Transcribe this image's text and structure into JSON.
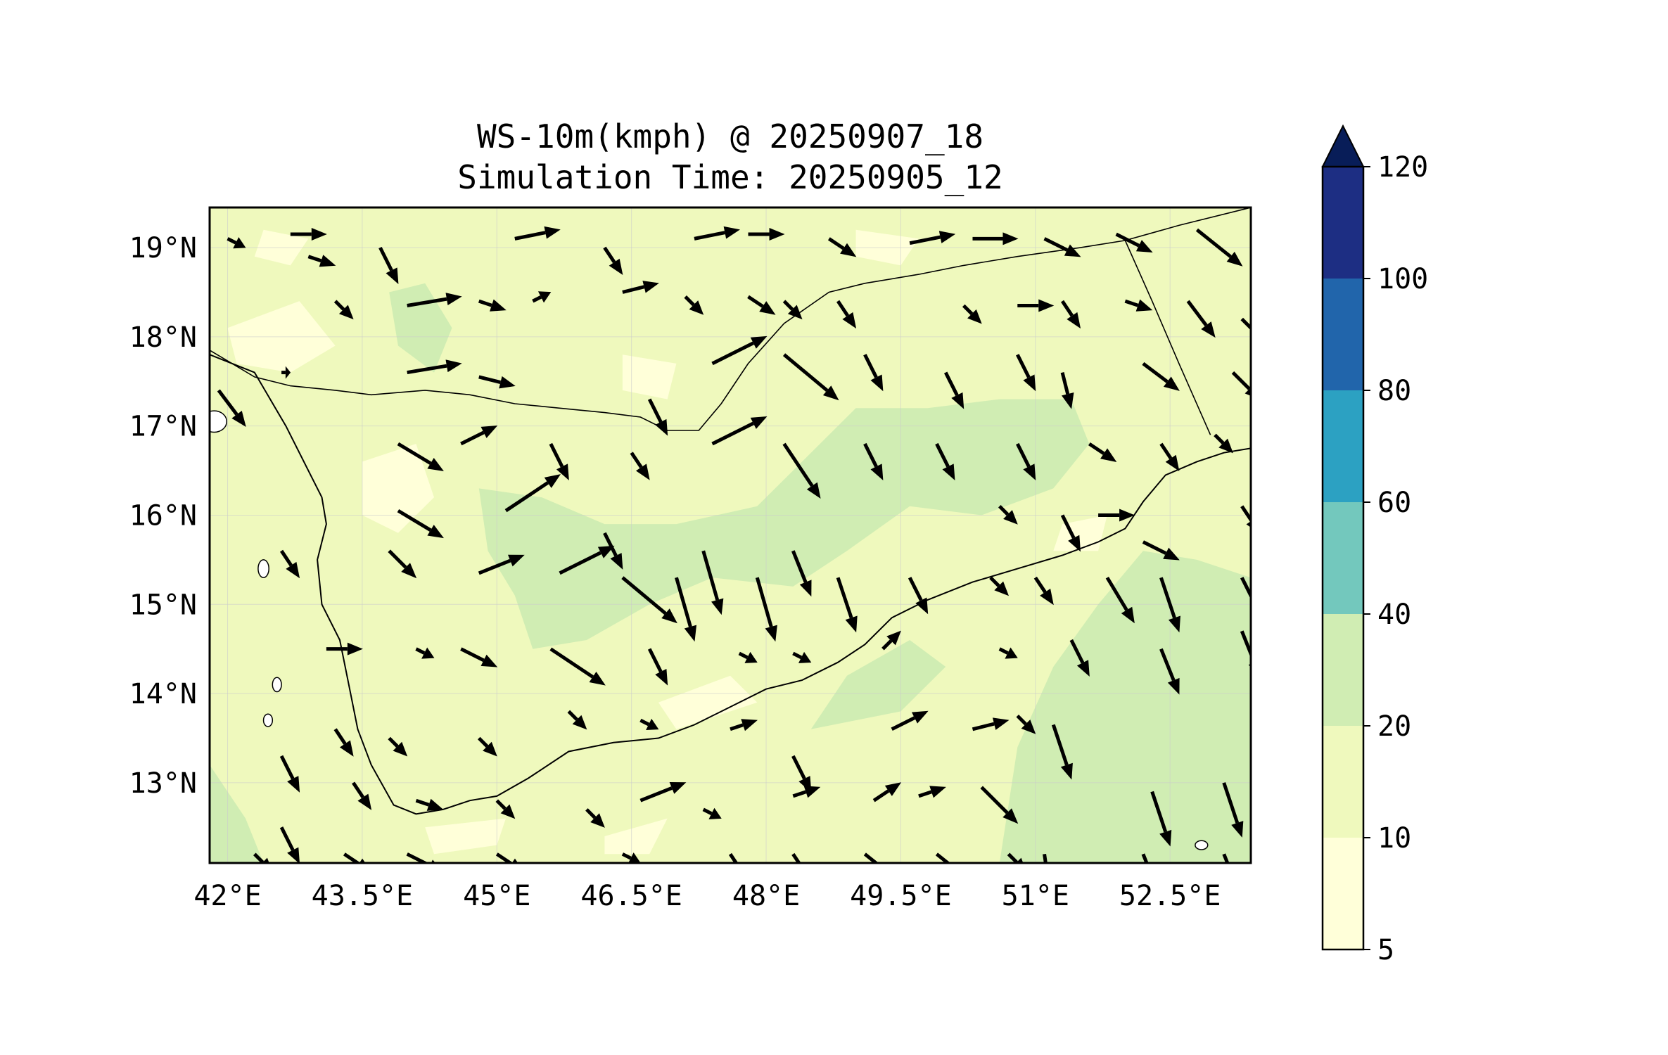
{
  "map": {
    "title_line1": "WS-10m(kmph) @ 20250907_18",
    "title_line2": "Simulation Time: 20250905_12",
    "x_axis": {
      "range": [
        41.8,
        53.4
      ],
      "ticks": [
        {
          "value": 42.0,
          "label": "42°E"
        },
        {
          "value": 43.5,
          "label": "43.5°E"
        },
        {
          "value": 45.0,
          "label": "45°E"
        },
        {
          "value": 46.5,
          "label": "46.5°E"
        },
        {
          "value": 48.0,
          "label": "48°E"
        },
        {
          "value": 49.5,
          "label": "49.5°E"
        },
        {
          "value": 51.0,
          "label": "51°E"
        },
        {
          "value": 52.5,
          "label": "52.5°E"
        }
      ]
    },
    "y_axis": {
      "range": [
        12.1,
        19.45
      ],
      "ticks": [
        {
          "value": 13,
          "label": "13°N"
        },
        {
          "value": 14,
          "label": "14°N"
        },
        {
          "value": 15,
          "label": "15°N"
        },
        {
          "value": 16,
          "label": "16°N"
        },
        {
          "value": 17,
          "label": "17°N"
        },
        {
          "value": 18,
          "label": "18°N"
        },
        {
          "value": 19,
          "label": "19°N"
        }
      ]
    },
    "grid": true,
    "colors": {
      "c5_10": "#ffffd9",
      "c10_20": "#eff9bd",
      "c20_40": "#d0edb3",
      "c40_60": "#73c8bd",
      "c60_80": "#2ca1c2",
      "c80_100": "#2165ab",
      "c100_120": "#1d2e83",
      "extend_max": "#081d58"
    },
    "coastline": [
      [
        41.8,
        17.8
      ],
      [
        42.3,
        17.6
      ],
      [
        42.65,
        17.0
      ],
      [
        42.9,
        16.5
      ],
      [
        43.05,
        16.2
      ],
      [
        43.1,
        15.9
      ],
      [
        43.0,
        15.5
      ],
      [
        43.05,
        15.0
      ],
      [
        43.25,
        14.6
      ],
      [
        43.35,
        14.1
      ],
      [
        43.45,
        13.6
      ],
      [
        43.6,
        13.2
      ],
      [
        43.85,
        12.75
      ],
      [
        44.1,
        12.65
      ],
      [
        44.4,
        12.7
      ],
      [
        44.7,
        12.8
      ],
      [
        45.0,
        12.85
      ],
      [
        45.35,
        13.05
      ],
      [
        45.8,
        13.35
      ],
      [
        46.3,
        13.45
      ],
      [
        46.8,
        13.5
      ],
      [
        47.2,
        13.65
      ],
      [
        47.6,
        13.85
      ],
      [
        48.0,
        14.05
      ],
      [
        48.4,
        14.15
      ],
      [
        48.8,
        14.35
      ],
      [
        49.1,
        14.55
      ],
      [
        49.4,
        14.85
      ],
      [
        49.8,
        15.05
      ],
      [
        50.3,
        15.25
      ],
      [
        50.8,
        15.4
      ],
      [
        51.3,
        15.55
      ],
      [
        51.7,
        15.7
      ],
      [
        52.0,
        15.85
      ],
      [
        52.2,
        16.15
      ],
      [
        52.45,
        16.45
      ],
      [
        52.8,
        16.6
      ],
      [
        53.1,
        16.7
      ],
      [
        53.4,
        16.75
      ]
    ],
    "border": [
      [
        41.8,
        17.85
      ],
      [
        42.3,
        17.55
      ],
      [
        42.7,
        17.45
      ],
      [
        43.2,
        17.4
      ],
      [
        43.6,
        17.35
      ],
      [
        44.2,
        17.4
      ],
      [
        44.7,
        17.35
      ],
      [
        45.2,
        17.25
      ],
      [
        45.7,
        17.2
      ],
      [
        46.2,
        17.15
      ],
      [
        46.6,
        17.1
      ],
      [
        46.9,
        16.95
      ],
      [
        47.25,
        16.95
      ],
      [
        47.5,
        17.25
      ],
      [
        47.8,
        17.7
      ],
      [
        48.2,
        18.15
      ],
      [
        48.7,
        18.5
      ],
      [
        49.1,
        18.6
      ],
      [
        49.7,
        18.7
      ],
      [
        50.2,
        18.8
      ],
      [
        50.8,
        18.9
      ],
      [
        51.5,
        19.0
      ],
      [
        52.0,
        19.08
      ],
      [
        52.6,
        19.25
      ],
      [
        53.4,
        19.45
      ]
    ],
    "border2": [
      [
        52.0,
        19.08
      ],
      [
        52.3,
        18.4
      ],
      [
        52.6,
        17.7
      ],
      [
        52.95,
        16.9
      ]
    ],
    "contours_20_40": [
      [
        [
          44.8,
          16.3
        ],
        [
          45.5,
          16.2
        ],
        [
          46.2,
          15.9
        ],
        [
          47.0,
          15.9
        ],
        [
          47.9,
          16.1
        ],
        [
          48.4,
          16.6
        ],
        [
          49.0,
          17.2
        ],
        [
          49.8,
          17.2
        ],
        [
          50.6,
          17.3
        ],
        [
          51.4,
          17.3
        ],
        [
          51.6,
          16.8
        ],
        [
          51.2,
          16.3
        ],
        [
          50.4,
          16.0
        ],
        [
          49.6,
          16.1
        ],
        [
          48.9,
          15.6
        ],
        [
          48.3,
          15.2
        ],
        [
          47.4,
          15.3
        ],
        [
          46.7,
          15.0
        ],
        [
          46.0,
          14.6
        ],
        [
          45.4,
          14.5
        ],
        [
          45.2,
          15.1
        ],
        [
          44.9,
          15.6
        ]
      ],
      [
        [
          50.6,
          12.1
        ],
        [
          50.8,
          13.4
        ],
        [
          51.2,
          14.3
        ],
        [
          51.7,
          15.0
        ],
        [
          52.2,
          15.6
        ],
        [
          52.8,
          15.5
        ],
        [
          53.4,
          15.3
        ],
        [
          53.4,
          12.1
        ]
      ],
      [
        [
          43.8,
          18.5
        ],
        [
          44.2,
          18.6
        ],
        [
          44.5,
          18.1
        ],
        [
          44.3,
          17.6
        ],
        [
          43.9,
          17.9
        ]
      ],
      [
        [
          48.5,
          13.6
        ],
        [
          49.5,
          13.8
        ],
        [
          50.0,
          14.3
        ],
        [
          49.6,
          14.6
        ],
        [
          48.9,
          14.2
        ]
      ],
      [
        [
          41.8,
          13.2
        ],
        [
          42.2,
          12.6
        ],
        [
          42.4,
          12.1
        ],
        [
          41.8,
          12.1
        ]
      ]
    ],
    "contours_5_10": [
      [
        [
          42.0,
          18.1
        ],
        [
          42.8,
          18.4
        ],
        [
          43.2,
          17.9
        ],
        [
          42.7,
          17.6
        ],
        [
          42.1,
          17.7
        ]
      ],
      [
        [
          43.5,
          16.6
        ],
        [
          44.1,
          16.8
        ],
        [
          44.3,
          16.2
        ],
        [
          43.9,
          15.8
        ],
        [
          43.5,
          16.0
        ]
      ],
      [
        [
          46.4,
          17.8
        ],
        [
          47.0,
          17.7
        ],
        [
          46.9,
          17.3
        ],
        [
          46.4,
          17.4
        ]
      ],
      [
        [
          47.0,
          13.6
        ],
        [
          47.9,
          13.9
        ],
        [
          47.6,
          14.2
        ],
        [
          46.8,
          13.9
        ]
      ],
      [
        [
          49.0,
          19.2
        ],
        [
          49.7,
          19.1
        ],
        [
          49.5,
          18.8
        ],
        [
          49.0,
          18.9
        ]
      ],
      [
        [
          42.4,
          19.2
        ],
        [
          42.9,
          19.1
        ],
        [
          42.7,
          18.8
        ],
        [
          42.3,
          18.9
        ]
      ],
      [
        [
          44.2,
          12.5
        ],
        [
          45.1,
          12.6
        ],
        [
          45.0,
          12.3
        ],
        [
          44.3,
          12.2
        ]
      ],
      [
        [
          46.2,
          12.4
        ],
        [
          46.9,
          12.6
        ],
        [
          46.7,
          12.2
        ],
        [
          46.2,
          12.2
        ]
      ],
      [
        [
          51.3,
          15.9
        ],
        [
          51.8,
          16.0
        ],
        [
          51.7,
          15.6
        ],
        [
          51.2,
          15.6
        ]
      ]
    ],
    "islands": [
      [
        41.85,
        17.05,
        0.14,
        0.12
      ],
      [
        42.4,
        15.4,
        0.06,
        0.1
      ],
      [
        42.55,
        14.1,
        0.05,
        0.08
      ],
      [
        42.45,
        13.7,
        0.05,
        0.07
      ],
      [
        52.85,
        12.3,
        0.07,
        0.05
      ]
    ],
    "vectors": [
      [
        42.0,
        19.1,
        2,
        -1
      ],
      [
        42.7,
        19.15,
        4,
        0
      ],
      [
        43.2,
        18.4,
        2,
        -2
      ],
      [
        44.0,
        18.35,
        6,
        1
      ],
      [
        44.8,
        18.4,
        3,
        -1
      ],
      [
        45.4,
        18.4,
        2,
        1
      ],
      [
        46.4,
        18.5,
        4,
        1
      ],
      [
        47.1,
        18.45,
        2,
        -2
      ],
      [
        47.8,
        18.45,
        3,
        -2
      ],
      [
        48.2,
        18.4,
        2,
        -2
      ],
      [
        48.8,
        18.4,
        2,
        -3
      ],
      [
        50.2,
        18.35,
        2,
        -2
      ],
      [
        50.8,
        18.35,
        4,
        0
      ],
      [
        51.3,
        18.4,
        2,
        -3
      ],
      [
        52.0,
        18.4,
        3,
        -1
      ],
      [
        52.7,
        18.4,
        3,
        -4
      ],
      [
        53.3,
        18.2,
        4,
        -4
      ],
      [
        42.9,
        18.9,
        3,
        -1
      ],
      [
        43.7,
        19.0,
        2,
        -4
      ],
      [
        45.2,
        19.1,
        5,
        1
      ],
      [
        46.2,
        19.0,
        2,
        -3
      ],
      [
        47.2,
        19.1,
        5,
        1
      ],
      [
        47.8,
        19.15,
        4,
        0
      ],
      [
        48.7,
        19.1,
        3,
        -2
      ],
      [
        49.6,
        19.05,
        5,
        1
      ],
      [
        50.3,
        19.1,
        5,
        0
      ],
      [
        51.1,
        19.1,
        4,
        -2
      ],
      [
        51.9,
        19.15,
        4,
        -2
      ],
      [
        52.8,
        19.2,
        5,
        -4
      ],
      [
        41.9,
        17.4,
        3,
        -4
      ],
      [
        42.6,
        17.6,
        1,
        0
      ],
      [
        44.0,
        17.6,
        6,
        1
      ],
      [
        44.8,
        17.55,
        4,
        -1
      ],
      [
        46.7,
        17.3,
        2,
        -4
      ],
      [
        47.4,
        17.7,
        6,
        3
      ],
      [
        48.2,
        17.8,
        6,
        -5
      ],
      [
        49.1,
        17.8,
        2,
        -4
      ],
      [
        50.0,
        17.6,
        2,
        -4
      ],
      [
        50.8,
        17.8,
        2,
        -4
      ],
      [
        51.3,
        17.6,
        1,
        -4
      ],
      [
        52.2,
        17.7,
        4,
        -3
      ],
      [
        53.2,
        17.6,
        3,
        -3
      ],
      [
        43.9,
        16.8,
        5,
        -3
      ],
      [
        44.6,
        16.8,
        4,
        2
      ],
      [
        45.6,
        16.8,
        2,
        -4
      ],
      [
        46.5,
        16.7,
        2,
        -3
      ],
      [
        47.4,
        16.8,
        6,
        3
      ],
      [
        48.2,
        16.8,
        4,
        -6
      ],
      [
        49.1,
        16.8,
        2,
        -4
      ],
      [
        49.9,
        16.8,
        2,
        -4
      ],
      [
        50.8,
        16.8,
        2,
        -4
      ],
      [
        51.6,
        16.8,
        3,
        -2
      ],
      [
        52.4,
        16.8,
        2,
        -3
      ],
      [
        53.0,
        16.9,
        2,
        -2
      ],
      [
        43.9,
        16.05,
        5,
        -3
      ],
      [
        45.1,
        16.05,
        6,
        4
      ],
      [
        46.2,
        15.8,
        2,
        -4
      ],
      [
        47.3,
        15.6,
        2,
        -7
      ],
      [
        47.9,
        15.3,
        2,
        -7
      ],
      [
        48.8,
        15.3,
        2,
        -6
      ],
      [
        49.6,
        15.3,
        2,
        -4
      ],
      [
        50.6,
        16.1,
        2,
        -2
      ],
      [
        51.3,
        16.0,
        2,
        -4
      ],
      [
        51.7,
        16.0,
        4,
        0
      ],
      [
        52.2,
        15.7,
        4,
        -2
      ],
      [
        53.3,
        16.1,
        2,
        -3
      ],
      [
        42.6,
        15.6,
        2,
        -3
      ],
      [
        43.8,
        15.6,
        3,
        -3
      ],
      [
        52.4,
        15.3,
        2,
        -6
      ],
      [
        44.8,
        15.35,
        5,
        2
      ],
      [
        45.7,
        15.35,
        6,
        3
      ],
      [
        46.4,
        15.3,
        6,
        -5
      ],
      [
        47.0,
        15.3,
        2,
        -7
      ],
      [
        48.3,
        15.6,
        2,
        -5
      ],
      [
        50.5,
        15.3,
        2,
        -2
      ],
      [
        51.0,
        15.3,
        2,
        -3
      ],
      [
        51.8,
        15.3,
        3,
        -5
      ],
      [
        53.3,
        15.3,
        3,
        -6
      ],
      [
        44.6,
        14.5,
        4,
        -2
      ],
      [
        45.6,
        14.5,
        6,
        -4
      ],
      [
        46.7,
        14.5,
        2,
        -4
      ],
      [
        47.7,
        14.45,
        2,
        -1
      ],
      [
        48.3,
        14.45,
        2,
        -1
      ],
      [
        49.3,
        14.5,
        2,
        2
      ],
      [
        50.6,
        14.5,
        2,
        -1
      ],
      [
        51.4,
        14.6,
        2,
        -4
      ],
      [
        52.4,
        14.5,
        2,
        -5
      ],
      [
        53.3,
        14.7,
        2,
        -5
      ],
      [
        43.1,
        14.5,
        4,
        0
      ],
      [
        44.1,
        14.5,
        2,
        -1
      ],
      [
        42.6,
        13.3,
        2,
        -4
      ],
      [
        43.2,
        13.6,
        2,
        -3
      ],
      [
        43.8,
        13.5,
        2,
        -2
      ],
      [
        44.8,
        13.5,
        2,
        -2
      ],
      [
        45.8,
        13.8,
        2,
        -2
      ],
      [
        46.6,
        13.7,
        2,
        -1
      ],
      [
        47.6,
        13.6,
        3,
        1
      ],
      [
        48.3,
        13.3,
        2,
        -4
      ],
      [
        49.4,
        13.6,
        4,
        2
      ],
      [
        50.3,
        13.6,
        4,
        1
      ],
      [
        50.8,
        13.75,
        2,
        -2
      ],
      [
        51.2,
        13.65,
        2,
        -6
      ],
      [
        52.3,
        12.9,
        2,
        -6
      ],
      [
        53.1,
        13.0,
        2,
        -6
      ],
      [
        42.6,
        12.5,
        2,
        -4
      ],
      [
        43.4,
        13.0,
        2,
        -3
      ],
      [
        44.1,
        12.8,
        3,
        -1
      ],
      [
        45.0,
        12.8,
        2,
        -2
      ],
      [
        46.0,
        12.7,
        2,
        -2
      ],
      [
        46.6,
        12.8,
        5,
        2
      ],
      [
        47.3,
        12.7,
        2,
        -1
      ],
      [
        48.3,
        12.85,
        3,
        1
      ],
      [
        49.2,
        12.8,
        3,
        2
      ],
      [
        49.7,
        12.85,
        3,
        1
      ],
      [
        50.4,
        12.95,
        4,
        -4
      ],
      [
        51.1,
        12.2,
        1,
        -7
      ],
      [
        52.2,
        12.2,
        2,
        -5
      ],
      [
        53.1,
        12.2,
        2,
        -5
      ],
      [
        42.3,
        12.2,
        2,
        -2
      ],
      [
        43.3,
        12.2,
        3,
        -2
      ],
      [
        44.0,
        12.2,
        4,
        -2
      ],
      [
        45.0,
        12.2,
        3,
        -2
      ],
      [
        46.4,
        12.2,
        2,
        -1
      ],
      [
        47.6,
        12.2,
        2,
        -3
      ],
      [
        48.3,
        12.2,
        2,
        -3
      ],
      [
        49.1,
        12.2,
        5,
        -4
      ],
      [
        49.9,
        12.2,
        5,
        -4
      ],
      [
        50.7,
        12.2,
        2,
        -2
      ]
    ]
  },
  "colorbar": {
    "levels": [
      {
        "value": 5,
        "label": "5"
      },
      {
        "value": 10,
        "label": "10"
      },
      {
        "value": 20,
        "label": "20"
      },
      {
        "value": 40,
        "label": "40"
      },
      {
        "value": 60,
        "label": "60"
      },
      {
        "value": 80,
        "label": "80"
      },
      {
        "value": 100,
        "label": "100"
      },
      {
        "value": 120,
        "label": "120"
      }
    ],
    "extend": "max"
  }
}
